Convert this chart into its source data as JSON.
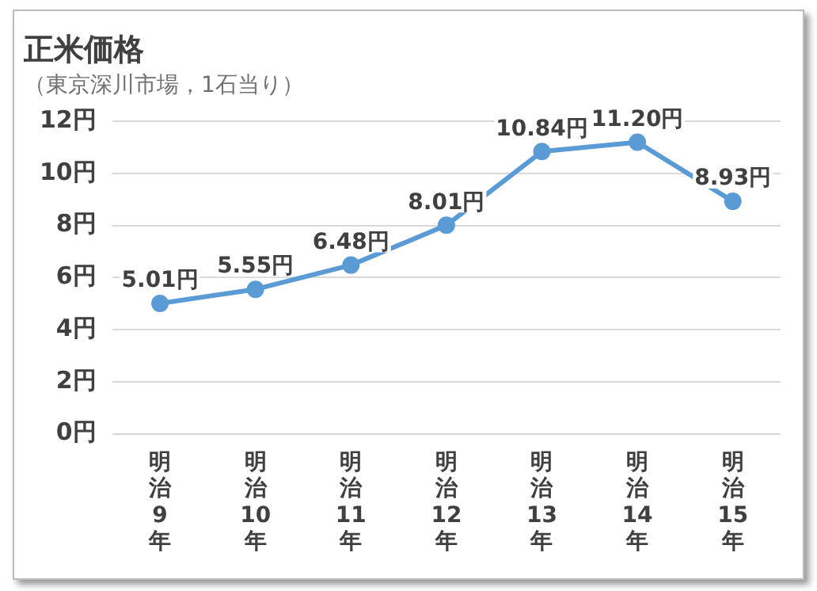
{
  "chart_data": {
    "type": "line",
    "title": "正米価格",
    "subtitle": "（東京深川市場，1石当り）",
    "categories": [
      "明治9年",
      "明治10年",
      "明治11年",
      "明治12年",
      "明治13年",
      "明治14年",
      "明治15年"
    ],
    "series": [
      {
        "color": "#5b9bd5",
        "values": [
          5.01,
          5.55,
          6.48,
          8.01,
          10.84,
          11.2,
          8.93
        ],
        "value_labels": [
          "5.01円",
          "5.55円",
          "6.48円",
          "8.01円",
          "10.84円",
          "11.20円",
          "8.93円"
        ]
      }
    ],
    "ylim": [
      0,
      12
    ],
    "yticks": [
      {
        "value": 0,
        "label": "0円"
      },
      {
        "value": 2,
        "label": "2円"
      },
      {
        "value": 4,
        "label": "4円"
      },
      {
        "value": 6,
        "label": "6円"
      },
      {
        "value": 8,
        "label": "8円"
      },
      {
        "value": 10,
        "label": "10円"
      },
      {
        "value": 12,
        "label": "12円"
      }
    ],
    "grid": "y",
    "legend": false,
    "marker": "circle",
    "line_style": "solid"
  }
}
